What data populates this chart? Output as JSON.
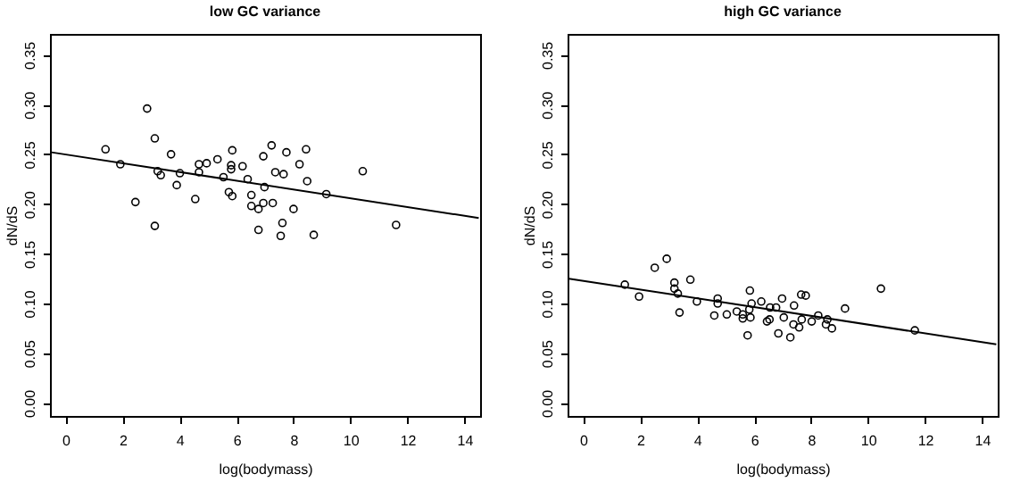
{
  "chart_data": [
    {
      "type": "scatter",
      "title": "low GC variance",
      "xlabel": "log(bodymass)",
      "ylabel": "dN/dS",
      "marker": "circle",
      "xlim": [
        -0.55,
        14.55
      ],
      "ylim": [
        -0.013,
        0.371
      ],
      "xticks": [
        0,
        2,
        4,
        6,
        8,
        10,
        12,
        14
      ],
      "yticks": [
        {
          "value": 0,
          "label": "0.00"
        },
        {
          "value": 0.05,
          "label": "0.05"
        },
        {
          "value": 0.1,
          "label": "0.10"
        },
        {
          "value": 0.15,
          "label": "0.15"
        },
        {
          "value": 0.2,
          "label": "0.20"
        },
        {
          "value": 0.25,
          "label": "0.25"
        },
        {
          "value": 0.3,
          "label": "0.30"
        },
        {
          "value": 0.35,
          "label": "0.35"
        }
      ],
      "series": [
        {
          "color": "#000000",
          "x": [
            1.4,
            1.92,
            2.45,
            2.86,
            3.13,
            3.13,
            3.23,
            3.34,
            3.7,
            3.9,
            4.01,
            4.55,
            4.68,
            4.68,
            4.95,
            5.33,
            5.54,
            5.73,
            5.81,
            5.85,
            5.81,
            5.85,
            6.21,
            6.39,
            6.52,
            6.52,
            6.77,
            6.77,
            6.94,
            6.94,
            6.98,
            7.23,
            7.27,
            7.36,
            7.55,
            7.61,
            7.65,
            7.75,
            8.0,
            8.21,
            8.44,
            8.48,
            8.71,
            9.15,
            10.43,
            11.6
          ],
          "values": [
            0.255,
            0.24,
            0.202,
            0.296,
            0.266,
            0.178,
            0.233,
            0.229,
            0.25,
            0.219,
            0.231,
            0.205,
            0.24,
            0.232,
            0.241,
            0.245,
            0.227,
            0.212,
            0.235,
            0.254,
            0.239,
            0.208,
            0.238,
            0.225,
            0.209,
            0.198,
            0.195,
            0.174,
            0.248,
            0.201,
            0.217,
            0.259,
            0.201,
            0.232,
            0.168,
            0.181,
            0.23,
            0.252,
            0.195,
            0.24,
            0.255,
            0.223,
            0.169,
            0.21,
            0.233,
            0.179
          ]
        },
        {
          "type": "line",
          "color": "#000000",
          "marker": "none",
          "x": [
            -0.5,
            14.5
          ],
          "values": [
            0.252,
            0.186
          ]
        }
      ]
    },
    {
      "type": "scatter",
      "title": "high GC variance",
      "xlabel": "log(bodymass)",
      "ylabel": "dN/dS",
      "marker": "circle",
      "xlim": [
        -0.55,
        14.55
      ],
      "ylim": [
        -0.013,
        0.371
      ],
      "xticks": [
        0,
        2,
        4,
        6,
        8,
        10,
        12,
        14
      ],
      "yticks": [
        {
          "value": 0,
          "label": "0.00"
        },
        {
          "value": 0.05,
          "label": "0.05"
        },
        {
          "value": 0.1,
          "label": "0.10"
        },
        {
          "value": 0.15,
          "label": "0.15"
        },
        {
          "value": 0.2,
          "label": "0.20"
        },
        {
          "value": 0.25,
          "label": "0.25"
        },
        {
          "value": 0.3,
          "label": "0.30"
        },
        {
          "value": 0.35,
          "label": "0.35"
        }
      ],
      "series": [
        {
          "color": "#000000",
          "x": [
            1.46,
            1.96,
            2.51,
            2.93,
            3.2,
            3.2,
            3.32,
            3.38,
            3.76,
            3.99,
            4.6,
            4.72,
            4.72,
            5.04,
            5.39,
            5.6,
            5.6,
            5.77,
            5.83,
            5.85,
            5.87,
            5.91,
            6.25,
            6.45,
            6.54,
            6.56,
            6.77,
            6.85,
            6.98,
            7.04,
            7.27,
            7.38,
            7.4,
            7.58,
            7.65,
            7.67,
            7.81,
            8.02,
            8.25,
            8.52,
            8.57,
            8.73,
            9.19,
            10.45,
            11.64
          ],
          "values": [
            0.119,
            0.107,
            0.136,
            0.145,
            0.121,
            0.115,
            0.11,
            0.091,
            0.124,
            0.102,
            0.088,
            0.105,
            0.1,
            0.089,
            0.092,
            0.085,
            0.089,
            0.068,
            0.094,
            0.113,
            0.086,
            0.1,
            0.102,
            0.082,
            0.084,
            0.096,
            0.096,
            0.07,
            0.105,
            0.086,
            0.066,
            0.079,
            0.098,
            0.076,
            0.109,
            0.084,
            0.108,
            0.082,
            0.088,
            0.079,
            0.084,
            0.075,
            0.095,
            0.115,
            0.073
          ]
        },
        {
          "type": "line",
          "color": "#000000",
          "marker": "none",
          "x": [
            -0.5,
            14.5
          ],
          "values": [
            0.125,
            0.059
          ]
        }
      ]
    }
  ]
}
